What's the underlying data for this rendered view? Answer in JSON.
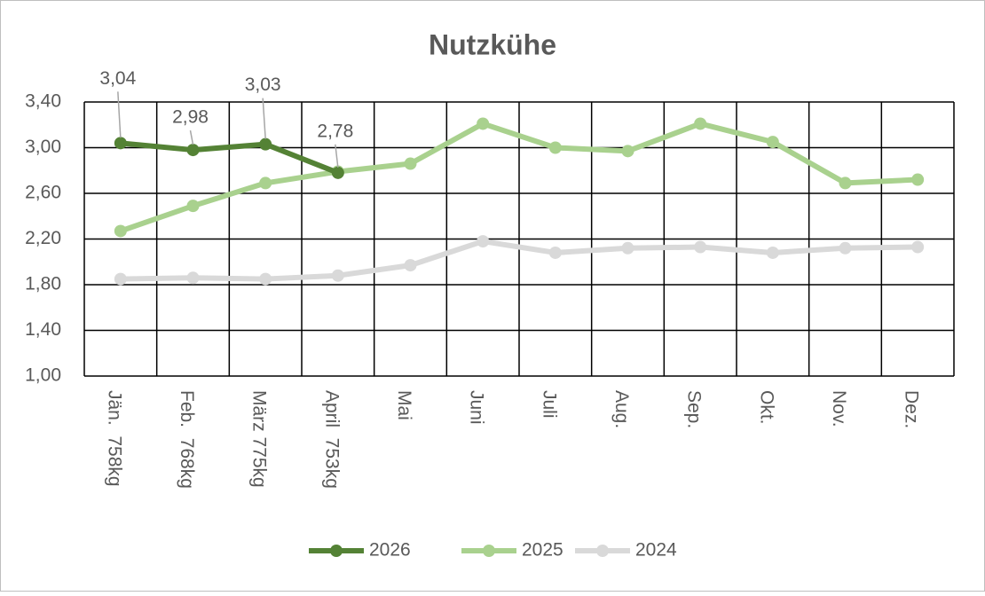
{
  "chart_data": {
    "type": "line",
    "title": "Nutzkühe",
    "categories": [
      "Jän.  758kg",
      "Feb.  768kg",
      "März 775kg",
      "April  753kg",
      "Mai",
      "Juni",
      "Juli",
      "Aug.",
      "Sep.",
      "Okt.",
      "Nov.",
      "Dez."
    ],
    "series": [
      {
        "name": "2026",
        "color": "#548235",
        "values": [
          3.04,
          2.98,
          3.03,
          2.78,
          null,
          null,
          null,
          null,
          null,
          null,
          null,
          null
        ],
        "value_labels": [
          "3,04",
          "2,98",
          "3,03",
          "2,78",
          null,
          null,
          null,
          null,
          null,
          null,
          null,
          null
        ]
      },
      {
        "name": "2025",
        "color": "#a9d18e",
        "values": [
          2.27,
          2.49,
          2.69,
          2.79,
          2.86,
          3.21,
          3.0,
          2.97,
          3.21,
          3.05,
          2.69,
          2.72
        ]
      },
      {
        "name": "2024",
        "color": "#d9d9d9",
        "values": [
          1.85,
          1.86,
          1.85,
          1.88,
          1.97,
          2.18,
          2.08,
          2.12,
          2.13,
          2.08,
          2.12,
          2.13
        ]
      }
    ],
    "ylim": [
      1.0,
      3.4
    ],
    "yticks": [
      {
        "value": 1.0,
        "label": "1,00"
      },
      {
        "value": 1.4,
        "label": "1,40"
      },
      {
        "value": 1.8,
        "label": "1,80"
      },
      {
        "value": 2.2,
        "label": "2,20"
      },
      {
        "value": 2.6,
        "label": "2,60"
      },
      {
        "value": 3.0,
        "label": "3,00"
      },
      {
        "value": 3.4,
        "label": "3,40"
      }
    ],
    "grid": true,
    "legend": "bottom"
  }
}
